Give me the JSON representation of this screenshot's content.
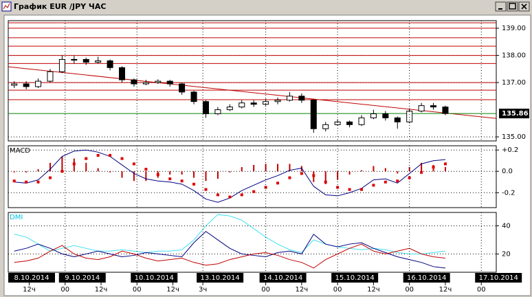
{
  "window": {
    "title": "График EUR /JPY ЧАС"
  },
  "chart_data": [
    {
      "type": "candlestick",
      "x": [
        2,
        6,
        10,
        14,
        18,
        22,
        26,
        30,
        34,
        38,
        42,
        46,
        50,
        54,
        58,
        62,
        66,
        70,
        74,
        78,
        82,
        86,
        90,
        94,
        98,
        102,
        106,
        110,
        114,
        118,
        122,
        126,
        130,
        134,
        138,
        142,
        146
      ],
      "open": [
        136.9,
        136.95,
        136.85,
        137.05,
        137.4,
        137.85,
        137.85,
        137.75,
        137.8,
        137.55,
        137.1,
        136.95,
        137.0,
        137.05,
        136.95,
        136.65,
        136.3,
        135.85,
        136.0,
        136.1,
        136.25,
        136.2,
        136.3,
        136.35,
        136.5,
        136.35,
        135.3,
        135.45,
        135.55,
        135.45,
        135.7,
        135.85,
        135.7,
        135.55,
        135.95,
        136.15,
        136.1
      ],
      "high": [
        137.05,
        137.05,
        137.15,
        137.5,
        138.0,
        137.98,
        137.92,
        137.95,
        137.85,
        137.6,
        137.15,
        137.1,
        137.12,
        137.1,
        137.0,
        136.7,
        136.35,
        136.1,
        136.2,
        136.35,
        136.35,
        136.4,
        136.45,
        136.65,
        136.6,
        136.4,
        135.55,
        135.65,
        135.6,
        135.8,
        136.0,
        135.95,
        135.75,
        136.05,
        136.25,
        136.25,
        136.15
      ],
      "low": [
        136.8,
        136.75,
        136.8,
        137.0,
        137.35,
        137.7,
        137.65,
        137.7,
        137.45,
        137.0,
        136.85,
        136.9,
        136.95,
        136.85,
        136.55,
        136.2,
        135.7,
        135.8,
        135.95,
        136.05,
        136.1,
        136.15,
        136.2,
        136.3,
        136.25,
        135.15,
        135.2,
        135.4,
        135.35,
        135.4,
        135.65,
        135.6,
        135.3,
        135.5,
        135.9,
        136.0,
        135.8
      ],
      "close": [
        136.95,
        136.85,
        137.05,
        137.4,
        137.85,
        137.85,
        137.75,
        137.8,
        137.55,
        137.1,
        136.95,
        137.0,
        137.05,
        136.95,
        136.65,
        136.3,
        135.85,
        136.0,
        136.1,
        136.25,
        136.2,
        136.3,
        136.35,
        136.5,
        136.35,
        135.3,
        135.45,
        135.55,
        135.45,
        135.7,
        135.85,
        135.7,
        135.55,
        135.95,
        136.15,
        136.1,
        135.86
      ],
      "xlim": [
        0,
        163
      ],
      "ylim": [
        134.85,
        139.28
      ],
      "yticks": [
        {
          "value": 135,
          "label": "135.00"
        },
        {
          "value": 137,
          "label": "137.00"
        },
        {
          "value": 138,
          "label": "138.00"
        },
        {
          "value": 139,
          "label": "139.00"
        }
      ],
      "levels": [
        139.2,
        139.0,
        138.65,
        138.34,
        138.0,
        137.7,
        137.0,
        136.72,
        136.37
      ],
      "level_color": "#c00000",
      "trendline": {
        "x": [
          0,
          163
        ],
        "values": [
          137.58,
          135.68
        ],
        "color": "#c00000"
      },
      "last_price": 135.86,
      "last_price_color": "#008000",
      "up_color": "#ffffff",
      "down_color": "#000000"
    },
    {
      "type": "indicator",
      "title": "MACD",
      "x": [
        2,
        6,
        10,
        14,
        18,
        22,
        26,
        30,
        34,
        38,
        42,
        46,
        50,
        54,
        58,
        62,
        66,
        70,
        74,
        78,
        82,
        86,
        90,
        94,
        98,
        102,
        106,
        110,
        114,
        118,
        122,
        126,
        130,
        134,
        138,
        142,
        146
      ],
      "xlim": [
        0,
        163
      ],
      "ylim": [
        -0.34,
        0.24
      ],
      "yticks": [
        {
          "value": 0.2,
          "label": "+0.2"
        },
        {
          "value": 0,
          "label": "0.0"
        },
        -0.2
      ],
      "series": [
        {
          "style": "bars",
          "color": "#c00000",
          "values": [
            -0.01,
            -0.01,
            0.02,
            0.08,
            0.14,
            0.12,
            0.08,
            0.03,
            -0.01,
            -0.06,
            -0.09,
            -0.09,
            -0.06,
            -0.03,
            -0.03,
            -0.06,
            -0.09,
            -0.07,
            -0.01,
            0.04,
            0.06,
            0.07,
            0.07,
            0.07,
            0.05,
            -0.1,
            -0.12,
            -0.08,
            -0.03,
            0.01,
            0.05,
            0.03,
            -0.02,
            0.04,
            0.08,
            0.06,
            0.04
          ]
        },
        {
          "style": "line",
          "color": "#000080",
          "values": [
            -0.1,
            -0.11,
            -0.08,
            0.02,
            0.14,
            0.19,
            0.2,
            0.18,
            0.14,
            0.06,
            -0.02,
            -0.07,
            -0.09,
            -0.1,
            -0.12,
            -0.18,
            -0.26,
            -0.29,
            -0.25,
            -0.18,
            -0.13,
            -0.08,
            -0.04,
            0.01,
            0.03,
            -0.14,
            -0.22,
            -0.23,
            -0.2,
            -0.16,
            -0.08,
            -0.07,
            -0.11,
            -0.02,
            0.07,
            0.1,
            0.11
          ]
        },
        {
          "style": "dots",
          "color": "#e00000",
          "values": [
            -0.09,
            -0.1,
            -0.1,
            -0.06,
            0.0,
            0.07,
            0.12,
            0.15,
            0.15,
            0.12,
            0.07,
            0.02,
            -0.03,
            -0.07,
            -0.09,
            -0.12,
            -0.17,
            -0.22,
            -0.24,
            -0.22,
            -0.19,
            -0.15,
            -0.11,
            -0.06,
            -0.02,
            -0.04,
            -0.1,
            -0.15,
            -0.17,
            -0.17,
            -0.13,
            -0.1,
            -0.09,
            -0.06,
            -0.01,
            0.04,
            0.07
          ]
        }
      ]
    },
    {
      "type": "indicator",
      "title": "DMI",
      "title_color": "#00c0e0",
      "x": [
        2,
        6,
        10,
        14,
        18,
        22,
        26,
        30,
        34,
        38,
        42,
        46,
        50,
        54,
        58,
        62,
        66,
        70,
        74,
        78,
        82,
        86,
        90,
        94,
        98,
        102,
        106,
        110,
        114,
        118,
        122,
        126,
        130,
        134,
        138,
        142,
        146
      ],
      "xlim": [
        0,
        163
      ],
      "ylim": [
        7,
        49.5
      ],
      "yticks": [
        20,
        40
      ],
      "series": [
        {
          "style": "line",
          "color": "#40e0f0",
          "values": [
            34,
            32,
            27,
            22,
            24,
            26,
            24,
            22,
            22,
            23,
            22,
            21,
            22,
            22,
            23,
            30,
            40,
            48,
            47,
            44,
            38,
            32,
            27,
            23,
            21,
            30,
            27,
            25,
            24,
            23,
            24,
            23,
            21,
            20,
            20,
            21,
            22
          ]
        },
        {
          "style": "line",
          "color": "#000080",
          "values": [
            22,
            24,
            27,
            24,
            20,
            18,
            20,
            22,
            20,
            18,
            19,
            21,
            20,
            19,
            18,
            28,
            36,
            30,
            24,
            20,
            19,
            18,
            21,
            22,
            20,
            34,
            27,
            25,
            27,
            28,
            24,
            21,
            18,
            16,
            14,
            11,
            10
          ]
        },
        {
          "style": "line",
          "color": "#c00000",
          "values": [
            14,
            15,
            17,
            22,
            26,
            20,
            17,
            16,
            18,
            22,
            20,
            17,
            15,
            16,
            17,
            14,
            12,
            13,
            16,
            18,
            20,
            21,
            19,
            16,
            14,
            10,
            16,
            20,
            24,
            27,
            22,
            20,
            22,
            24,
            20,
            18,
            17
          ]
        }
      ],
      "date_ticks": [
        {
          "value": 0,
          "label": "8.10.2014"
        },
        {
          "value": 19,
          "label": "9.10.2014"
        },
        {
          "value": 43,
          "label": "10.10.2014"
        },
        {
          "value": 65,
          "label": "13.10.2014"
        },
        {
          "value": 86,
          "label": "14.10.2014"
        },
        {
          "value": 110,
          "label": "15.10.2014"
        },
        {
          "value": 134,
          "label": "16.10.2014"
        },
        {
          "value": 158,
          "label": "17.10.2014"
        }
      ],
      "xticks": [
        {
          "value": 7,
          "label": "12ч"
        },
        {
          "value": 19,
          "label": "00"
        },
        {
          "value": 31,
          "label": "12ч"
        },
        {
          "value": 43,
          "label": "00"
        },
        {
          "value": 55,
          "label": "12ч"
        },
        {
          "value": 65,
          "label": "3ч"
        },
        {
          "value": 86,
          "label": "00"
        },
        {
          "value": 98,
          "label": "12ч"
        },
        {
          "value": 110,
          "label": "00"
        },
        {
          "value": 122,
          "label": "12ч"
        },
        {
          "value": 134,
          "label": "00"
        },
        {
          "value": 146,
          "label": "12ч"
        },
        {
          "value": 158,
          "label": "00"
        }
      ]
    }
  ]
}
